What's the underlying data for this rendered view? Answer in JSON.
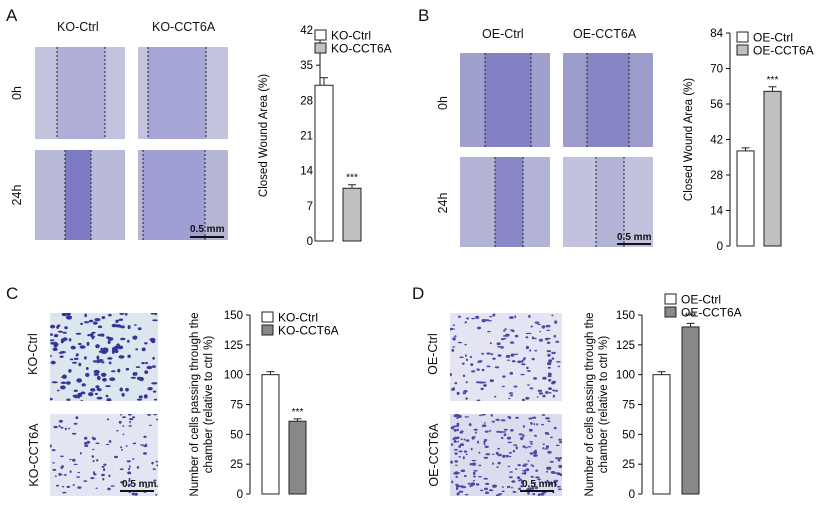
{
  "panels": {
    "A": {
      "letter": "A",
      "columns": [
        "KO-Ctrl",
        "KO-CCT6A"
      ],
      "rows": [
        "0h",
        "24h"
      ],
      "scale": "0.5 mm"
    },
    "B": {
      "letter": "B",
      "columns": [
        "OE-Ctrl",
        "OE-CCT6A"
      ],
      "rows": [
        "0h",
        "24h"
      ],
      "scale": "0.5 mm"
    },
    "C": {
      "letter": "C",
      "rows": [
        "KO-Ctrl",
        "KO-CCT6A"
      ],
      "scale": "0.5 mm"
    },
    "D": {
      "letter": "D",
      "rows": [
        "OE-Ctrl",
        "OE-CCT6A"
      ],
      "scale": "0.5 mm"
    }
  },
  "colors": {
    "ctrl_bar": "#ffffff",
    "ko_bar": "#c0c0c0",
    "oe_bar": "#c0c0c0",
    "transwell_bar": "#888888",
    "micro_bg": "#b9b9dc",
    "micro_scratch": "#7f80c4",
    "transwell_bg": "#dfe6f2",
    "transwell_cell": "#3b3a9a"
  },
  "chart_data": [
    {
      "id": "A",
      "type": "bar",
      "categories": [
        "KO-Ctrl",
        "KO-CCT6A"
      ],
      "values": [
        31,
        10.5
      ],
      "errors": [
        1.5,
        0.7
      ],
      "legend": [
        "KO-Ctrl",
        "KO-CCT6A"
      ],
      "ylabel": "Closed Wound Area (%)",
      "xlabel": "",
      "ylim": [
        0,
        42
      ],
      "yticks": [
        "0",
        "7",
        "14",
        "21",
        "28",
        "35",
        "42"
      ],
      "annotation": "***"
    },
    {
      "id": "B",
      "type": "bar",
      "categories": [
        "OE-Ctrl",
        "OE-CCT6A"
      ],
      "values": [
        37.5,
        61
      ],
      "errors": [
        1.2,
        1.8
      ],
      "legend": [
        "OE-Ctrl",
        "OE-CCT6A"
      ],
      "ylabel": "Closed Wound Area (%)",
      "xlabel": "",
      "ylim": [
        0,
        84
      ],
      "yticks": [
        "0",
        "14",
        "28",
        "42",
        "56",
        "70",
        "84"
      ],
      "annotation": "***"
    },
    {
      "id": "C",
      "type": "bar",
      "categories": [
        "KO-Ctrl",
        "KO-CCT6A"
      ],
      "values": [
        100,
        61
      ],
      "errors": [
        2.5,
        2.0
      ],
      "legend": [
        "KO-Ctrl",
        "KO-CCT6A"
      ],
      "ylabel": "Number of cells passing through the chamber (relative to ctrl %)",
      "ylabel_lines": [
        "Number of cells passing through the",
        "chamber (relative to ctrl %)"
      ],
      "xlabel": "",
      "ylim": [
        0,
        150
      ],
      "yticks": [
        "0",
        "25",
        "50",
        "75",
        "100",
        "125",
        "150"
      ],
      "annotation": "***"
    },
    {
      "id": "D",
      "type": "bar",
      "categories": [
        "OE-Ctrl",
        "OE-CCT6A"
      ],
      "values": [
        100,
        140
      ],
      "errors": [
        2.5,
        3.0
      ],
      "legend": [
        "OE-Ctrl",
        "OE-CCT6A"
      ],
      "ylabel": "Number of cells passing through the chamber (relative to ctrl %)",
      "ylabel_lines": [
        "Number of cells passing through the",
        "chamber (relative to ctrl %)"
      ],
      "xlabel": "",
      "ylim": [
        0,
        150
      ],
      "yticks": [
        "0",
        "25",
        "50",
        "75",
        "100",
        "125",
        "150"
      ],
      "annotation": "***"
    }
  ]
}
